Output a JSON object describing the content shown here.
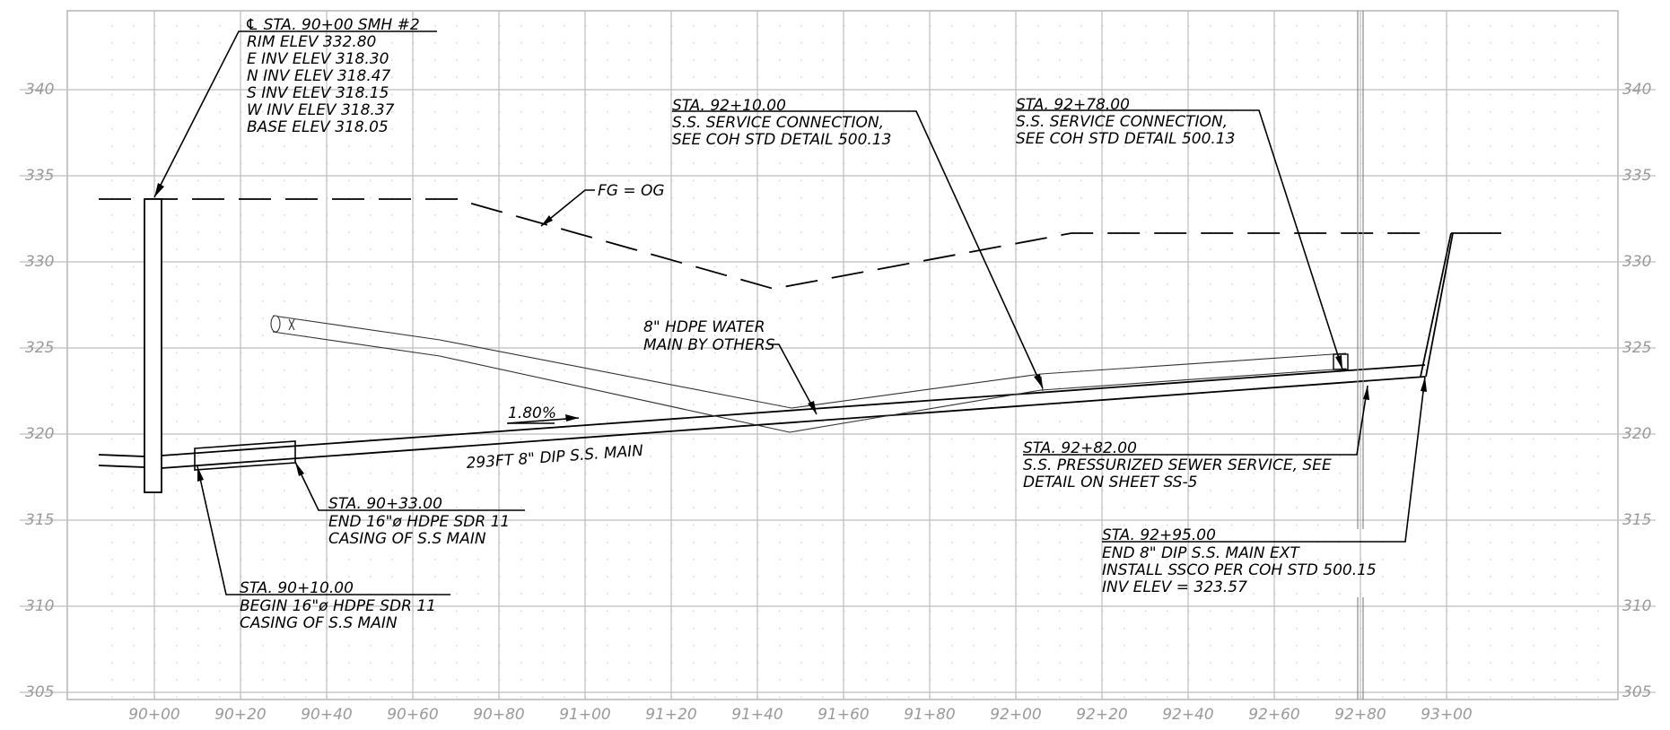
{
  "elevations": [
    "340",
    "335",
    "330",
    "325",
    "320",
    "315",
    "310",
    "305"
  ],
  "stations": [
    "90+00",
    "90+20",
    "90+40",
    "90+60",
    "90+80",
    "91+00",
    "91+20",
    "91+40",
    "91+60",
    "91+80",
    "92+00",
    "92+20",
    "92+40",
    "92+60",
    "92+80",
    "93+00"
  ],
  "labels": {
    "ground": "FG = OG",
    "slope": "1.80%",
    "main": "293FT 8\" DIP S.S. MAIN"
  },
  "notes": {
    "smh": [
      "℄ STA. 90+00 SMH #2",
      "RIM ELEV 332.80",
      "E INV ELEV 318.30",
      "N INV ELEV 318.47",
      "S INV ELEV 318.15",
      "W INV ELEV 318.37",
      "BASE ELEV 318.05"
    ],
    "sta_92_10": [
      "STA. 92+10.00",
      "S.S. SERVICE CONNECTION,",
      "SEE COH STD DETAIL 500.13"
    ],
    "sta_92_78": [
      "STA. 92+78.00",
      "S.S. SERVICE CONNECTION,",
      "SEE COH STD DETAIL 500.13"
    ],
    "water_main": [
      "8\" HDPE WATER",
      "MAIN BY OTHERS"
    ],
    "sta_92_82": [
      "STA. 92+82.00",
      "S.S. PRESSURIZED SEWER SERVICE, SEE",
      "DETAIL ON SHEET SS-5"
    ],
    "sta_92_95": [
      "STA. 92+95.00",
      "END 8\" DIP S.S. MAIN EXT",
      "INSTALL SSCO PER COH STD 500.15",
      "INV ELEV = 323.57"
    ],
    "sta_90_33": [
      "STA. 90+33.00",
      "END 16\"ø HDPE SDR 11",
      "CASING OF S.S MAIN"
    ],
    "sta_90_10": [
      "STA. 90+10.00",
      "BEGIN 16\"ø HDPE SDR 11",
      "CASING OF S.S MAIN"
    ]
  }
}
